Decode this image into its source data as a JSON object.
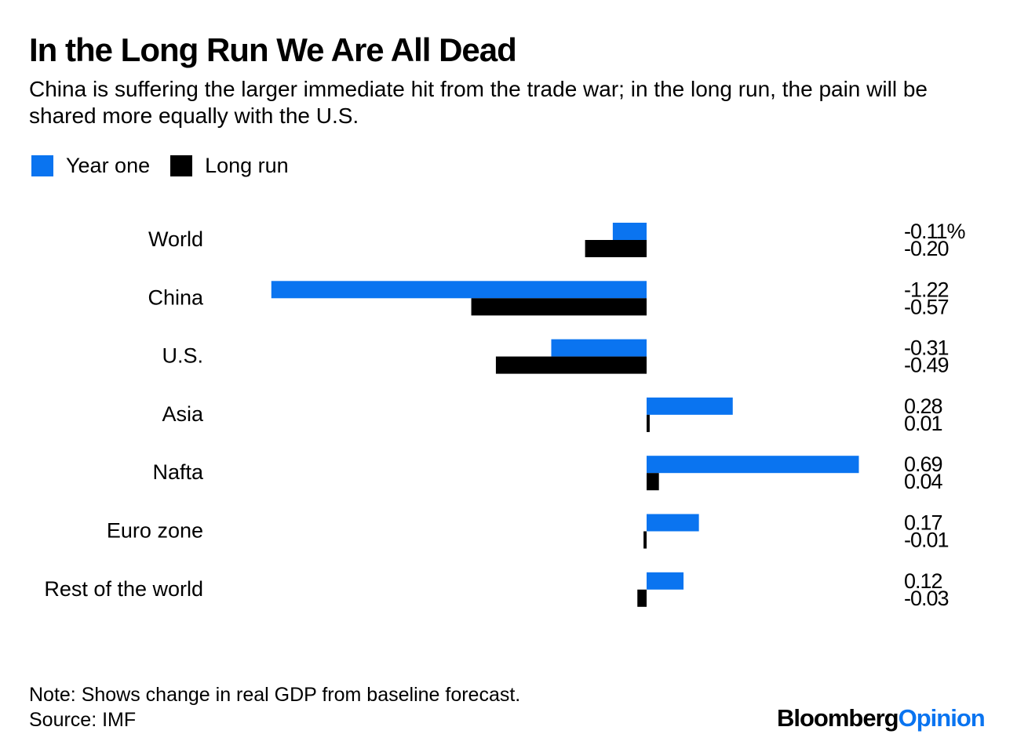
{
  "header": {
    "title": "In the Long Run We Are All Dead",
    "subtitle": "China is suffering the larger immediate hit from the trade war; in the long run, the pain will be shared more equally with the U.S."
  },
  "legend": [
    {
      "label": "Year one",
      "color": "#0a74f0"
    },
    {
      "label": "Long run",
      "color": "#000000"
    }
  ],
  "chart_data": {
    "type": "bar",
    "orientation": "horizontal",
    "title": "In the Long Run We Are All Dead",
    "categories": [
      "World",
      "China",
      "U.S.",
      "Asia",
      "Nafta",
      "Euro zone",
      "Rest of the world"
    ],
    "series": [
      {
        "name": "Year one",
        "color": "#0a74f0",
        "values": [
          -0.11,
          -1.22,
          -0.31,
          0.28,
          0.69,
          0.17,
          0.12
        ],
        "labels": [
          "-0.11%",
          "-1.22",
          "-0.31",
          "0.28",
          "0.69",
          "0.17",
          "0.12"
        ]
      },
      {
        "name": "Long run",
        "color": "#000000",
        "values": [
          -0.2,
          -0.57,
          -0.49,
          0.01,
          0.04,
          -0.01,
          -0.03
        ],
        "labels": [
          "-0.20",
          "-0.57",
          "-0.49",
          "0.01",
          "0.04",
          "-0.01",
          "-0.03"
        ]
      }
    ],
    "xlim": [
      -1.22,
      0.69
    ],
    "unit": "%",
    "legend_position": "top-left",
    "grid": false
  },
  "footer": {
    "note": "Note: Shows change in real GDP from baseline forecast.",
    "source": "Source: IMF",
    "logo_main": "Bloomberg",
    "logo_accent": "Opinion"
  }
}
